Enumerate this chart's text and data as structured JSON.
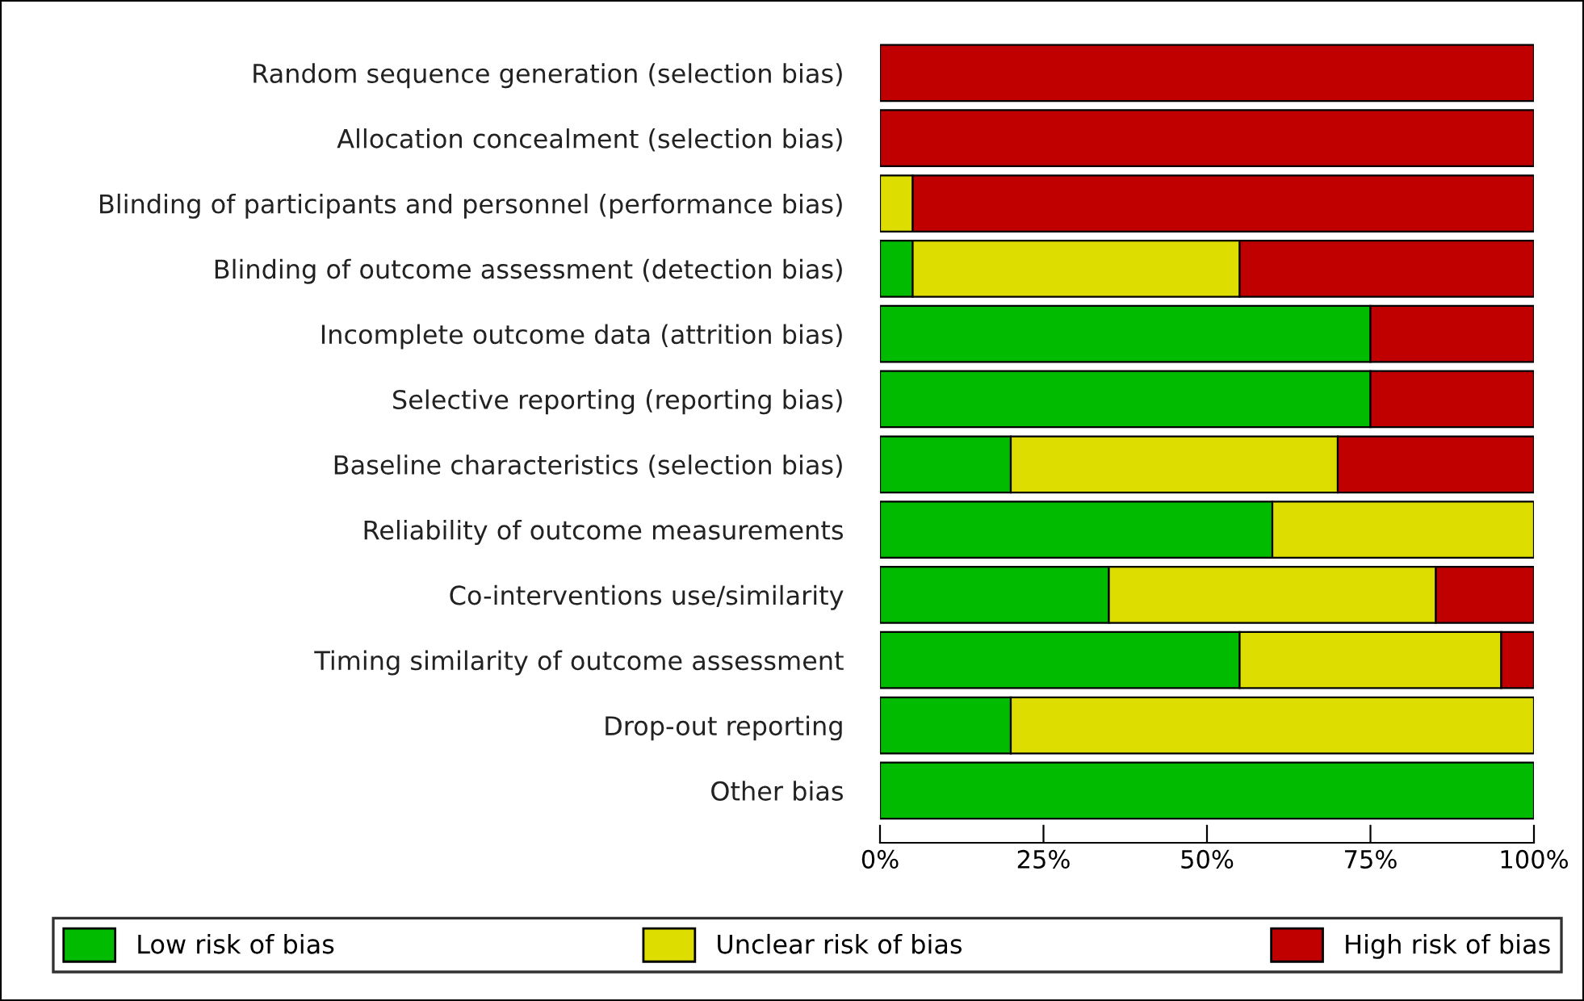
{
  "chart_data": {
    "type": "bar",
    "orientation": "horizontal",
    "stacked": true,
    "categories": [
      "Random sequence generation (selection bias)",
      "Allocation concealment (selection bias)",
      "Blinding of participants and personnel (performance bias)",
      "Blinding of outcome assessment (detection bias)",
      "Incomplete outcome data (attrition bias)",
      "Selective reporting (reporting bias)",
      "Baseline characteristics (selection bias)",
      "Reliability of outcome measurements",
      "Co-interventions use/similarity",
      "Timing similarity of outcome assessment",
      "Drop-out reporting",
      "Other bias"
    ],
    "series": [
      {
        "name": "Low risk of bias",
        "color": "#00bb00",
        "values": [
          0,
          0,
          0,
          5,
          75,
          75,
          20,
          60,
          35,
          55,
          20,
          100
        ]
      },
      {
        "name": "Unclear risk of bias",
        "color": "#dddd00",
        "values": [
          0,
          0,
          5,
          50,
          0,
          0,
          50,
          40,
          50,
          40,
          80,
          0
        ]
      },
      {
        "name": "High risk of bias",
        "color": "#c00000",
        "values": [
          100,
          100,
          95,
          45,
          25,
          25,
          30,
          0,
          15,
          5,
          0,
          0
        ]
      }
    ],
    "xlim": [
      0,
      100
    ],
    "xticks": [
      {
        "value": 0,
        "label": "0%"
      },
      {
        "value": 25,
        "label": "25%"
      },
      {
        "value": 50,
        "label": "50%"
      },
      {
        "value": 75,
        "label": "75%"
      },
      {
        "value": 100,
        "label": "100%"
      }
    ],
    "grid": false,
    "legend": "bottom"
  }
}
